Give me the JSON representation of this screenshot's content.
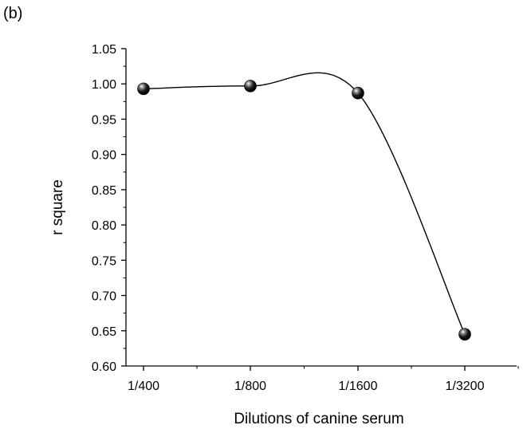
{
  "panel_label": "(b)",
  "chart_data": {
    "type": "line",
    "title": "",
    "xlabel": "Dilutions of canine serum",
    "ylabel": "r square",
    "categories": [
      "1/400",
      "1/800",
      "1/1600",
      "1/3200"
    ],
    "series": [
      {
        "values": [
          0.993,
          0.997,
          0.987,
          0.645
        ]
      }
    ],
    "ylim": [
      0.6,
      1.05
    ],
    "yticks": [
      "0.60",
      "0.65",
      "0.70",
      "0.75",
      "0.80",
      "0.85",
      "0.90",
      "0.95",
      "1.00",
      "1.05"
    ],
    "yticks_minor": true,
    "grid": false,
    "legend": "none",
    "line_style": "smooth spline",
    "marker": "black sphere",
    "colors": {
      "line": "#000000",
      "marker": "#111111",
      "axis": "#000000"
    }
  }
}
